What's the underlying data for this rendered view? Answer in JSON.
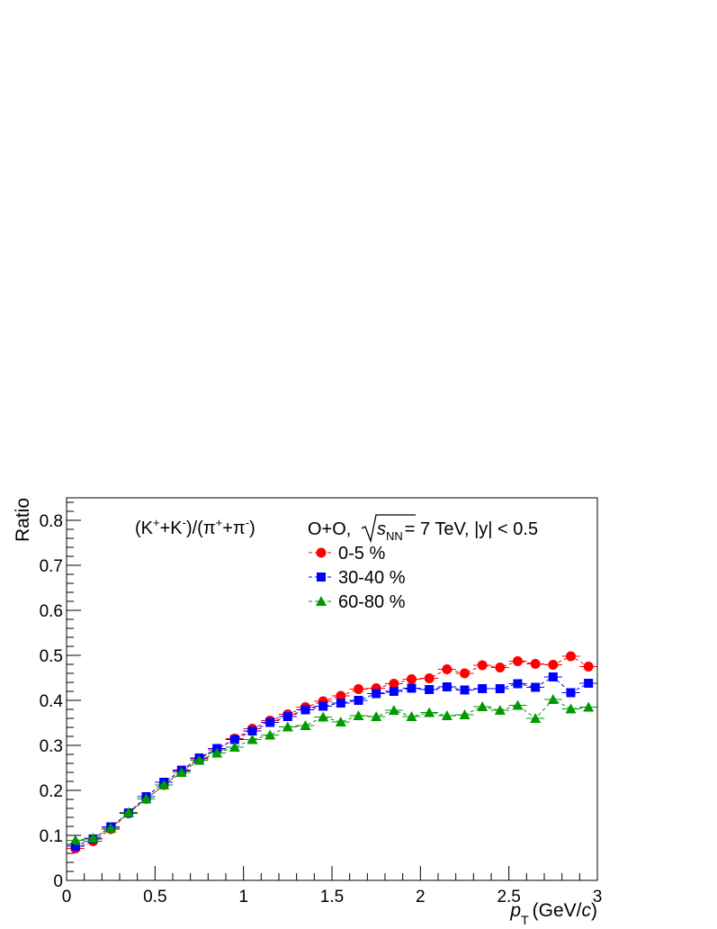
{
  "chart_data": {
    "type": "scatter",
    "title": "(K⁺+K⁻)/(π⁺+π⁻)",
    "annotation": "O+O, √sNN = 7 TeV, |y| < 0.5",
    "xlabel": "pT (GeV/c)",
    "ylabel": "Ratio",
    "xlim": [
      0,
      3
    ],
    "ylim": [
      0,
      0.85
    ],
    "x_ticks": [
      "0",
      "0.5",
      "1",
      "1.5",
      "2",
      "2.5",
      "3"
    ],
    "y_ticks": [
      "0",
      "0.1",
      "0.2",
      "0.3",
      "0.4",
      "0.5",
      "0.6",
      "0.7",
      "0.8"
    ],
    "legend_position": "top-center",
    "x": [
      0.05,
      0.15,
      0.25,
      0.35,
      0.45,
      0.55,
      0.65,
      0.75,
      0.85,
      0.95,
      1.05,
      1.15,
      1.25,
      1.35,
      1.45,
      1.55,
      1.65,
      1.75,
      1.85,
      1.95,
      2.05,
      2.15,
      2.25,
      2.35,
      2.45,
      2.55,
      2.65,
      2.75,
      2.85,
      2.95
    ],
    "series": [
      {
        "name": "0-5 %",
        "color": "#ff0000",
        "marker": "circle",
        "values": [
          0.071,
          0.087,
          0.114,
          0.149,
          0.181,
          0.212,
          0.243,
          0.27,
          0.29,
          0.315,
          0.337,
          0.355,
          0.369,
          0.385,
          0.398,
          0.41,
          0.425,
          0.427,
          0.437,
          0.447,
          0.449,
          0.469,
          0.46,
          0.478,
          0.473,
          0.487,
          0.481,
          0.479,
          0.498,
          0.475
        ]
      },
      {
        "name": "30-40 %",
        "color": "#0000ff",
        "marker": "square",
        "values": [
          0.076,
          0.092,
          0.119,
          0.15,
          0.186,
          0.218,
          0.245,
          0.272,
          0.293,
          0.313,
          0.332,
          0.351,
          0.364,
          0.379,
          0.387,
          0.394,
          0.4,
          0.415,
          0.42,
          0.427,
          0.424,
          0.43,
          0.423,
          0.426,
          0.426,
          0.437,
          0.429,
          0.452,
          0.417,
          0.438
        ]
      },
      {
        "name": "60-80 %",
        "color": "#009900",
        "marker": "triangle",
        "values": [
          0.089,
          0.094,
          0.116,
          0.151,
          0.181,
          0.212,
          0.24,
          0.267,
          0.283,
          0.296,
          0.313,
          0.323,
          0.341,
          0.344,
          0.363,
          0.352,
          0.366,
          0.364,
          0.378,
          0.364,
          0.373,
          0.366,
          0.368,
          0.386,
          0.378,
          0.389,
          0.36,
          0.402,
          0.381,
          0.385
        ]
      }
    ]
  }
}
